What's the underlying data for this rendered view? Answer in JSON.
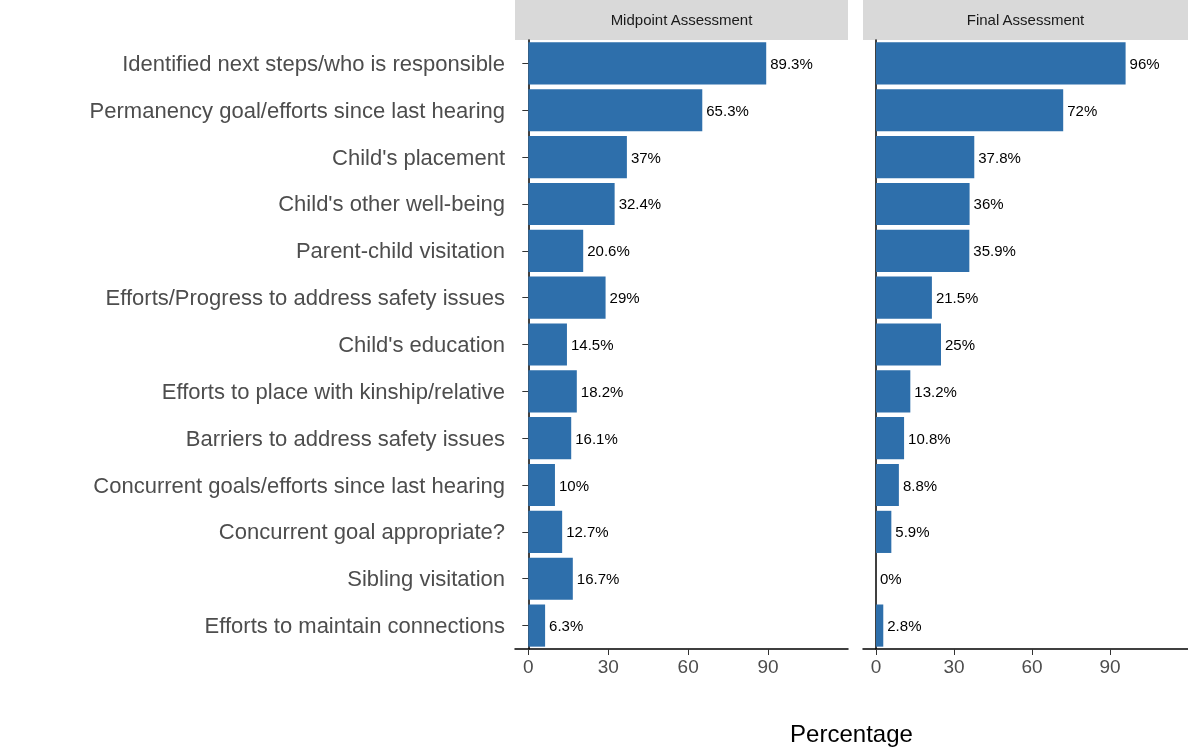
{
  "chart_data": [
    {
      "type": "bar",
      "orientation": "horizontal",
      "title": "Midpoint Assessment",
      "xlabel": "Percentage",
      "categories": [
        "Identified next steps/who is responsible",
        "Permanency goal/efforts since last hearing",
        "Child's placement",
        "Child's other well-being",
        "Parent-child visitation",
        "Efforts/Progress to address safety issues",
        "Child's education",
        "Efforts to place with kinship/relative",
        "Barriers to address safety issues",
        "Concurrent goals/efforts since last hearing",
        "Concurrent goal appropriate?",
        "Sibling visitation",
        "Efforts to maintain connections"
      ],
      "values": [
        89.3,
        65.3,
        37,
        32.4,
        20.6,
        29,
        14.5,
        18.2,
        16.1,
        10,
        12.7,
        16.7,
        6.3
      ],
      "value_labels": [
        "89.3%",
        "65.3%",
        "37%",
        "32.4%",
        "20.6%",
        "29%",
        "14.5%",
        "18.2%",
        "16.1%",
        "10%",
        "12.7%",
        "16.7%",
        "6.3%"
      ],
      "color": "#2e6fab",
      "xlim": [
        -5,
        120
      ],
      "xticks": [
        0,
        30,
        60,
        90
      ]
    },
    {
      "type": "bar",
      "orientation": "horizontal",
      "title": "Final Assessment",
      "tick_labels": "x",
      "categories": [
        null,
        null,
        null,
        null,
        null,
        null,
        null,
        null,
        null,
        null,
        null,
        null,
        null
      ],
      "values": [
        96,
        72,
        37.8,
        36,
        35.9,
        21.5,
        25,
        13.2,
        10.8,
        8.8,
        5.9,
        0,
        2.8
      ],
      "value_labels": [
        "96%",
        "72%",
        "37.8%",
        "36%",
        "35.9%",
        "21.5%",
        "25%",
        "13.2%",
        "10.8%",
        "8.8%",
        "5.9%",
        "0%",
        "2.8%"
      ],
      "color": "#2e6fab",
      "xlim": [
        -5,
        120
      ],
      "xticks": [
        0,
        30,
        60,
        90
      ]
    }
  ]
}
